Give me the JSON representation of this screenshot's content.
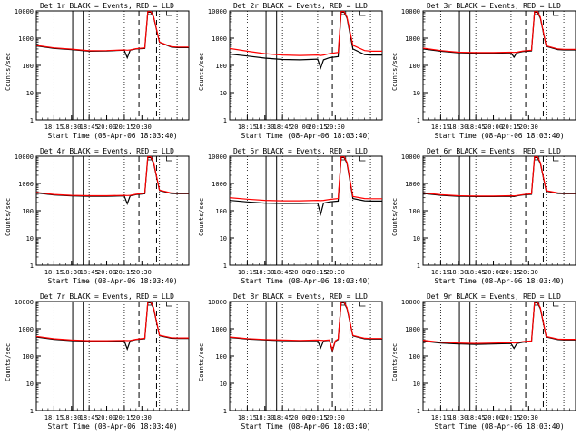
{
  "chart_data": [
    {
      "type": "line",
      "title": "Det 1r BLACK = Events, RED = LLD",
      "xlabel": "Start Time (08-Apr-06 18:03:40)",
      "ylabel": "Counts/sec",
      "x_tick_labels": [
        "18:15",
        "18:30",
        "18:45",
        "20:00",
        "20:15",
        "20:30"
      ],
      "y_tick_labels": [
        "1",
        "10",
        "100",
        "1000",
        "10000"
      ],
      "y_scale": "log",
      "ylim": [
        1,
        10000
      ],
      "x": [
        0,
        3,
        6,
        9,
        12,
        15,
        15.5,
        16,
        17,
        18.5,
        19,
        19.5,
        20,
        21,
        23,
        24,
        26
      ],
      "series": [
        {
          "name": "BLACK = Events",
          "color": "#000000",
          "values": [
            520,
            420,
            380,
            330,
            340,
            360,
            190,
            360,
            400,
            420,
            9000,
            9000,
            6000,
            700,
            470,
            450,
            450
          ]
        },
        {
          "name": "RED = LLD",
          "color": "#ff0000",
          "values": [
            540,
            440,
            395,
            345,
            350,
            370,
            360,
            370,
            410,
            440,
            9500,
            9500,
            6200,
            720,
            490,
            470,
            470
          ]
        }
      ]
    },
    {
      "type": "line",
      "title": "Det 2r BLACK = Events, RED = LLD",
      "xlabel": "Start Time (08-Apr-06 18:03:40)",
      "ylabel": "Counts/sec",
      "x_tick_labels": [
        "18:15",
        "18:30",
        "18:45",
        "20:00",
        "20:15",
        "20:30"
      ],
      "y_tick_labels": [
        "1",
        "10",
        "100",
        "1000",
        "10000"
      ],
      "y_scale": "log",
      "ylim": [
        1,
        10000
      ],
      "x": [
        0,
        3,
        6,
        9,
        12,
        15,
        15.5,
        16,
        17,
        18.5,
        19,
        19.5,
        20,
        21,
        23,
        24,
        26
      ],
      "series": [
        {
          "name": "BLACK = Events",
          "color": "#000000",
          "values": [
            260,
            220,
            185,
            165,
            160,
            170,
            80,
            160,
            190,
            210,
            9000,
            9000,
            5500,
            400,
            250,
            240,
            240
          ]
        },
        {
          "name": "RED = LLD",
          "color": "#ff0000",
          "values": [
            420,
            330,
            270,
            240,
            230,
            240,
            230,
            240,
            270,
            300,
            9500,
            9500,
            6000,
            550,
            350,
            330,
            330
          ]
        }
      ]
    },
    {
      "type": "line",
      "title": "Det 3r BLACK = Events, RED = LLD",
      "xlabel": "Start Time (08-Apr-06 18:03:40)",
      "ylabel": "Counts/sec",
      "x_tick_labels": [
        "18:15",
        "18:30",
        "18:45",
        "20:00",
        "20:15",
        "20:30"
      ],
      "y_tick_labels": [
        "1",
        "10",
        "100",
        "1000",
        "10000"
      ],
      "y_scale": "log",
      "ylim": [
        1,
        10000
      ],
      "x": [
        0,
        3,
        6,
        9,
        12,
        15,
        15.5,
        16,
        17,
        18.5,
        19,
        19.5,
        20,
        21,
        23,
        24,
        26
      ],
      "series": [
        {
          "name": "BLACK = Events",
          "color": "#000000",
          "values": [
            400,
            330,
            290,
            280,
            280,
            290,
            200,
            290,
            320,
            340,
            9000,
            9000,
            5500,
            500,
            380,
            370,
            370
          ]
        },
        {
          "name": "RED = LLD",
          "color": "#ff0000",
          "values": [
            430,
            350,
            305,
            295,
            295,
            305,
            300,
            305,
            335,
            360,
            9500,
            9500,
            6000,
            520,
            400,
            390,
            390
          ]
        }
      ]
    },
    {
      "type": "line",
      "title": "Det 4r BLACK = Events, RED = LLD",
      "xlabel": "Start Time (08-Apr-06 18:03:40)",
      "ylabel": "Counts/sec",
      "x_tick_labels": [
        "18:15",
        "18:30",
        "18:45",
        "20:00",
        "20:15",
        "20:30"
      ],
      "y_tick_labels": [
        "1",
        "10",
        "100",
        "1000",
        "10000"
      ],
      "y_scale": "log",
      "ylim": [
        1,
        10000
      ],
      "x": [
        0,
        3,
        6,
        9,
        12,
        15,
        15.5,
        16,
        17,
        18.5,
        19,
        19.5,
        20,
        21,
        23,
        24,
        26
      ],
      "series": [
        {
          "name": "BLACK = Events",
          "color": "#000000",
          "values": [
            450,
            380,
            350,
            340,
            340,
            350,
            180,
            350,
            390,
            420,
            9000,
            9000,
            5500,
            550,
            430,
            420,
            420
          ]
        },
        {
          "name": "RED = LLD",
          "color": "#ff0000",
          "values": [
            470,
            395,
            365,
            355,
            355,
            365,
            360,
            365,
            400,
            440,
            9500,
            9500,
            6000,
            570,
            450,
            440,
            440
          ]
        }
      ]
    },
    {
      "type": "line",
      "title": "Det 5r BLACK = Events, RED = LLD",
      "xlabel": "Start Time (08-Apr-06 18:03:40)",
      "ylabel": "Counts/sec",
      "x_tick_labels": [
        "18:15",
        "18:30",
        "18:45",
        "20:00",
        "20:15",
        "20:30"
      ],
      "y_tick_labels": [
        "1",
        "10",
        "100",
        "1000",
        "10000"
      ],
      "y_scale": "log",
      "ylim": [
        1,
        10000
      ],
      "x": [
        0,
        3,
        6,
        9,
        12,
        15,
        15.5,
        16,
        17,
        18.5,
        19,
        19.5,
        20,
        21,
        23,
        24,
        26
      ],
      "series": [
        {
          "name": "BLACK = Events",
          "color": "#000000",
          "values": [
            240,
            210,
            190,
            185,
            185,
            190,
            75,
            190,
            210,
            225,
            9000,
            9000,
            5500,
            280,
            230,
            225,
            225
          ]
        },
        {
          "name": "RED = LLD",
          "color": "#ff0000",
          "values": [
            300,
            265,
            240,
            230,
            230,
            240,
            235,
            240,
            260,
            280,
            9500,
            9500,
            6000,
            330,
            280,
            275,
            275
          ]
        }
      ]
    },
    {
      "type": "line",
      "title": "Det 6r BLACK = Events, RED = LLD",
      "xlabel": "Start Time (08-Apr-06 18:03:40)",
      "ylabel": "Counts/sec",
      "x_tick_labels": [
        "18:15",
        "18:30",
        "18:45",
        "20:00",
        "20:15",
        "20:30"
      ],
      "y_tick_labels": [
        "1",
        "10",
        "100",
        "1000",
        "10000"
      ],
      "y_scale": "log",
      "ylim": [
        1,
        10000
      ],
      "x": [
        0,
        3,
        6,
        9,
        12,
        15,
        15.5,
        16,
        17,
        18.5,
        19,
        19.5,
        20,
        21,
        23,
        24,
        26
      ],
      "series": [
        {
          "name": "BLACK = Events",
          "color": "#000000",
          "values": [
            430,
            370,
            340,
            330,
            330,
            340,
            330,
            350,
            380,
            400,
            9000,
            9000,
            5500,
            520,
            430,
            420,
            420
          ]
        },
        {
          "name": "RED = LLD",
          "color": "#ff0000",
          "values": [
            450,
            385,
            355,
            345,
            345,
            355,
            350,
            360,
            390,
            420,
            9500,
            9500,
            6000,
            540,
            450,
            440,
            440
          ]
        }
      ]
    },
    {
      "type": "line",
      "title": "Det 7r BLACK = Events, RED = LLD",
      "xlabel": "Start Time (08-Apr-06 18:03:40)",
      "ylabel": "Counts/sec",
      "x_tick_labels": [
        "18:15",
        "18:30",
        "18:45",
        "20:00",
        "20:15",
        "20:30"
      ],
      "y_tick_labels": [
        "1",
        "10",
        "100",
        "1000",
        "10000"
      ],
      "y_scale": "log",
      "ylim": [
        1,
        10000
      ],
      "x": [
        0,
        3,
        6,
        9,
        12,
        15,
        15.5,
        16,
        17,
        18.5,
        19,
        19.5,
        20,
        21,
        23,
        24,
        26
      ],
      "series": [
        {
          "name": "BLACK = Events",
          "color": "#000000",
          "values": [
            500,
            410,
            370,
            350,
            350,
            360,
            180,
            360,
            400,
            430,
            9000,
            9000,
            5500,
            560,
            450,
            440,
            440
          ]
        },
        {
          "name": "RED = LLD",
          "color": "#ff0000",
          "values": [
            530,
            430,
            385,
            365,
            365,
            375,
            370,
            375,
            410,
            450,
            9500,
            9500,
            6000,
            580,
            470,
            460,
            460
          ]
        }
      ]
    },
    {
      "type": "line",
      "title": "Det 8r BLACK = Events, RED = LLD",
      "xlabel": "Start Time (08-Apr-06 18:03:40)",
      "ylabel": "Counts/sec",
      "x_tick_labels": [
        "18:15",
        "18:30",
        "18:45",
        "20:00",
        "20:15",
        "20:30"
      ],
      "y_tick_labels": [
        "1",
        "10",
        "100",
        "1000",
        "10000"
      ],
      "y_scale": "log",
      "ylim": [
        1,
        10000
      ],
      "x": [
        0,
        3,
        6,
        9,
        12,
        15,
        15.5,
        16,
        17,
        17.5,
        18,
        18.5,
        19,
        19.5,
        20,
        21,
        23,
        24,
        26
      ],
      "series": [
        {
          "name": "BLACK = Events",
          "color": "#000000",
          "values": [
            480,
            420,
            390,
            370,
            360,
            370,
            200,
            360,
            380,
            150,
            350,
            400,
            9000,
            9000,
            5500,
            550,
            430,
            420,
            420
          ]
        },
        {
          "name": "RED = LLD",
          "color": "#ff0000",
          "values": [
            500,
            435,
            405,
            385,
            375,
            385,
            380,
            375,
            390,
            170,
            360,
            420,
            9500,
            9500,
            6000,
            570,
            450,
            440,
            440
          ]
        }
      ]
    },
    {
      "type": "line",
      "title": "Det 9r BLACK = Events, RED = LLD",
      "xlabel": "Start Time (08-Apr-06 18:03:40)",
      "ylabel": "Counts/sec",
      "x_tick_labels": [
        "18:15",
        "18:30",
        "18:45",
        "20:00",
        "20:15",
        "20:30"
      ],
      "y_tick_labels": [
        "1",
        "10",
        "100",
        "1000",
        "10000"
      ],
      "y_scale": "log",
      "ylim": [
        1,
        10000
      ],
      "x": [
        0,
        3,
        6,
        9,
        12,
        15,
        15.5,
        16,
        17,
        18.5,
        19,
        19.5,
        20,
        21,
        23,
        24,
        26
      ],
      "series": [
        {
          "name": "BLACK = Events",
          "color": "#000000",
          "values": [
            350,
            300,
            280,
            270,
            280,
            290,
            190,
            290,
            320,
            340,
            9000,
            9000,
            5500,
            500,
            400,
            390,
            390
          ]
        },
        {
          "name": "RED = LLD",
          "color": "#ff0000",
          "values": [
            380,
            320,
            300,
            290,
            300,
            310,
            300,
            310,
            340,
            360,
            9500,
            9500,
            6000,
            520,
            420,
            410,
            410
          ]
        }
      ]
    }
  ]
}
